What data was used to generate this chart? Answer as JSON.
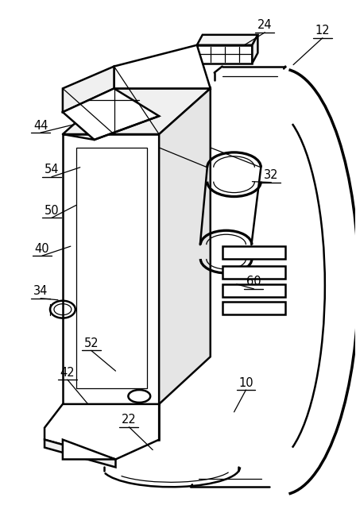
{
  "bg_color": "#ffffff",
  "line_color": "#000000",
  "lw_main": 1.8,
  "lw_thin": 0.9,
  "label_fontsize": 10.5,
  "figsize": [
    4.48,
    6.7
  ],
  "dpi": 100
}
